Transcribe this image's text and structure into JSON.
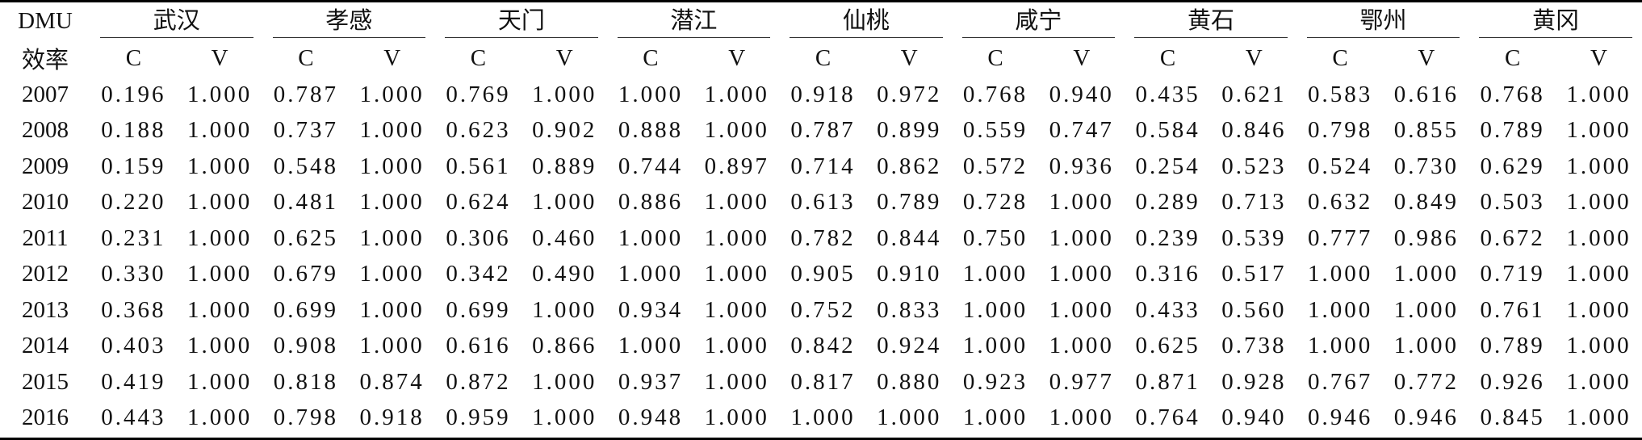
{
  "table": {
    "corner": "DMU",
    "row_label": "效率",
    "groups": [
      {
        "name": "武汉",
        "sub": [
          "C",
          "V"
        ]
      },
      {
        "name": "孝感",
        "sub": [
          "C",
          "V"
        ]
      },
      {
        "name": "天门",
        "sub": [
          "C",
          "V"
        ]
      },
      {
        "name": "潜江",
        "sub": [
          "C",
          "V"
        ]
      },
      {
        "name": "仙桃",
        "sub": [
          "C",
          "V"
        ]
      },
      {
        "name": "咸宁",
        "sub": [
          "C",
          "V"
        ]
      },
      {
        "name": "黄石",
        "sub": [
          "C",
          "V"
        ]
      },
      {
        "name": "鄂州",
        "sub": [
          "C",
          "V"
        ]
      },
      {
        "name": "黄冈",
        "sub": [
          "C",
          "V"
        ]
      }
    ],
    "rows": [
      {
        "label": "2007",
        "cells": [
          "0.196",
          "1.000",
          "0.787",
          "1.000",
          "0.769",
          "1.000",
          "1.000",
          "1.000",
          "0.918",
          "0.972",
          "0.768",
          "0.940",
          "0.435",
          "0.621",
          "0.583",
          "0.616",
          "0.768",
          "1.000"
        ]
      },
      {
        "label": "2008",
        "cells": [
          "0.188",
          "1.000",
          "0.737",
          "1.000",
          "0.623",
          "0.902",
          "0.888",
          "1.000",
          "0.787",
          "0.899",
          "0.559",
          "0.747",
          "0.584",
          "0.846",
          "0.798",
          "0.855",
          "0.789",
          "1.000"
        ]
      },
      {
        "label": "2009",
        "cells": [
          "0.159",
          "1.000",
          "0.548",
          "1.000",
          "0.561",
          "0.889",
          "0.744",
          "0.897",
          "0.714",
          "0.862",
          "0.572",
          "0.936",
          "0.254",
          "0.523",
          "0.524",
          "0.730",
          "0.629",
          "1.000"
        ]
      },
      {
        "label": "2010",
        "cells": [
          "0.220",
          "1.000",
          "0.481",
          "1.000",
          "0.624",
          "1.000",
          "0.886",
          "1.000",
          "0.613",
          "0.789",
          "0.728",
          "1.000",
          "0.289",
          "0.713",
          "0.632",
          "0.849",
          "0.503",
          "1.000"
        ]
      },
      {
        "label": "2011",
        "cells": [
          "0.231",
          "1.000",
          "0.625",
          "1.000",
          "0.306",
          "0.460",
          "1.000",
          "1.000",
          "0.782",
          "0.844",
          "0.750",
          "1.000",
          "0.239",
          "0.539",
          "0.777",
          "0.986",
          "0.672",
          "1.000"
        ]
      },
      {
        "label": "2012",
        "cells": [
          "0.330",
          "1.000",
          "0.679",
          "1.000",
          "0.342",
          "0.490",
          "1.000",
          "1.000",
          "0.905",
          "0.910",
          "1.000",
          "1.000",
          "0.316",
          "0.517",
          "1.000",
          "1.000",
          "0.719",
          "1.000"
        ]
      },
      {
        "label": "2013",
        "cells": [
          "0.368",
          "1.000",
          "0.699",
          "1.000",
          "0.699",
          "1.000",
          "0.934",
          "1.000",
          "0.752",
          "0.833",
          "1.000",
          "1.000",
          "0.433",
          "0.560",
          "1.000",
          "1.000",
          "0.761",
          "1.000"
        ]
      },
      {
        "label": "2014",
        "cells": [
          "0.403",
          "1.000",
          "0.908",
          "1.000",
          "0.616",
          "0.866",
          "1.000",
          "1.000",
          "0.842",
          "0.924",
          "1.000",
          "1.000",
          "0.625",
          "0.738",
          "1.000",
          "1.000",
          "0.789",
          "1.000"
        ]
      },
      {
        "label": "2015",
        "cells": [
          "0.419",
          "1.000",
          "0.818",
          "0.874",
          "0.872",
          "1.000",
          "0.937",
          "1.000",
          "0.817",
          "0.880",
          "0.923",
          "0.977",
          "0.871",
          "0.928",
          "0.767",
          "0.772",
          "0.926",
          "1.000"
        ]
      },
      {
        "label": "2016",
        "cells": [
          "0.443",
          "1.000",
          "0.798",
          "0.918",
          "0.959",
          "1.000",
          "0.948",
          "1.000",
          "1.000",
          "1.000",
          "1.000",
          "1.000",
          "0.764",
          "0.940",
          "0.946",
          "0.946",
          "0.845",
          "1.000"
        ]
      }
    ]
  }
}
